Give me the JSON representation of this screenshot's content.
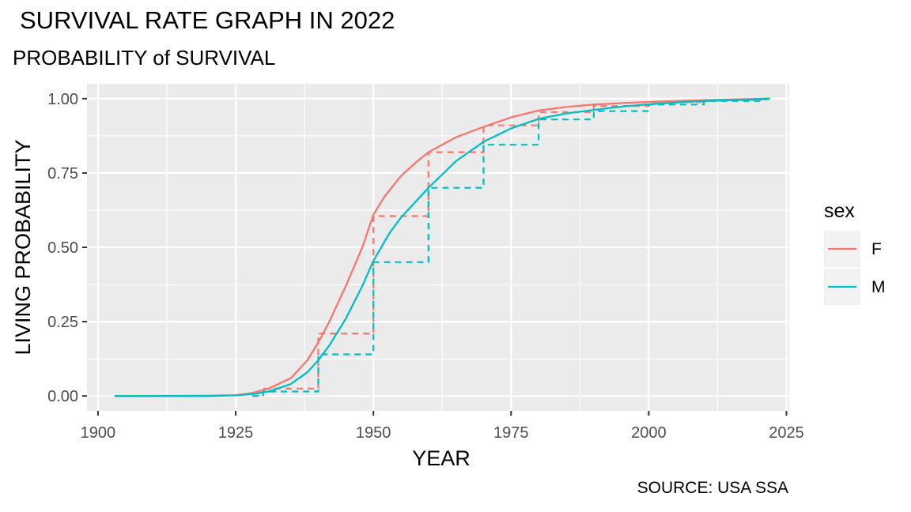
{
  "title": "SURVIVAL RATE GRAPH IN 2022",
  "subtitle": "PROBABILITY of SURVIVAL",
  "caption": "SOURCE: USA SSA",
  "chart_data": {
    "type": "line",
    "xlabel": "YEAR",
    "ylabel": "LIVING PROBABILITY",
    "xlim": [
      1898,
      2025.5
    ],
    "ylim": [
      -0.05,
      1.05
    ],
    "xticks": [
      1900,
      1925,
      1950,
      1975,
      2000,
      2025
    ],
    "yticks": [
      0.0,
      0.25,
      0.5,
      0.75,
      1.0
    ],
    "ytick_labels": [
      "0.00",
      "0.25",
      "0.50",
      "0.75",
      "1.00"
    ],
    "grid": true,
    "legend": {
      "title": "sex",
      "position": "right"
    },
    "series": [
      {
        "name": "F",
        "color": "#F8766D",
        "smooth": [
          [
            1903,
            0.0
          ],
          [
            1910,
            0.0
          ],
          [
            1920,
            0.001
          ],
          [
            1925,
            0.003
          ],
          [
            1928,
            0.01
          ],
          [
            1931,
            0.025
          ],
          [
            1935,
            0.06
          ],
          [
            1938,
            0.12
          ],
          [
            1940,
            0.18
          ],
          [
            1942,
            0.25
          ],
          [
            1945,
            0.37
          ],
          [
            1948,
            0.5
          ],
          [
            1950,
            0.61
          ],
          [
            1952,
            0.67
          ],
          [
            1955,
            0.74
          ],
          [
            1958,
            0.79
          ],
          [
            1960,
            0.82
          ],
          [
            1965,
            0.87
          ],
          [
            1970,
            0.905
          ],
          [
            1975,
            0.937
          ],
          [
            1980,
            0.96
          ],
          [
            1985,
            0.972
          ],
          [
            1990,
            0.98
          ],
          [
            1995,
            0.985
          ],
          [
            2000,
            0.989
          ],
          [
            2005,
            0.992
          ],
          [
            2010,
            0.995
          ],
          [
            2015,
            0.997
          ],
          [
            2022,
            1.0
          ]
        ],
        "step": [
          [
            1930,
            0.025
          ],
          [
            1940,
            0.025
          ],
          [
            1940,
            0.21
          ],
          [
            1950,
            0.21
          ],
          [
            1950,
            0.605
          ],
          [
            1960,
            0.605
          ],
          [
            1960,
            0.82
          ],
          [
            1970,
            0.82
          ],
          [
            1970,
            0.91
          ],
          [
            1980,
            0.91
          ],
          [
            1980,
            0.955
          ],
          [
            1990,
            0.955
          ],
          [
            1990,
            0.975
          ],
          [
            2000,
            0.975
          ],
          [
            2000,
            0.988
          ],
          [
            2010,
            0.988
          ],
          [
            2010,
            0.995
          ],
          [
            2020,
            0.995
          ],
          [
            2022,
            1.0
          ]
        ]
      },
      {
        "name": "M",
        "color": "#00BFC4",
        "smooth": [
          [
            1903,
            0.0
          ],
          [
            1910,
            0.0
          ],
          [
            1920,
            0.0
          ],
          [
            1925,
            0.002
          ],
          [
            1928,
            0.006
          ],
          [
            1931,
            0.015
          ],
          [
            1935,
            0.04
          ],
          [
            1938,
            0.08
          ],
          [
            1940,
            0.12
          ],
          [
            1942,
            0.17
          ],
          [
            1945,
            0.26
          ],
          [
            1948,
            0.37
          ],
          [
            1950,
            0.455
          ],
          [
            1953,
            0.55
          ],
          [
            1955,
            0.6
          ],
          [
            1958,
            0.66
          ],
          [
            1960,
            0.7
          ],
          [
            1965,
            0.79
          ],
          [
            1970,
            0.855
          ],
          [
            1975,
            0.9
          ],
          [
            1980,
            0.932
          ],
          [
            1985,
            0.95
          ],
          [
            1990,
            0.962
          ],
          [
            1995,
            0.973
          ],
          [
            2000,
            0.981
          ],
          [
            2005,
            0.987
          ],
          [
            2010,
            0.992
          ],
          [
            2015,
            0.995
          ],
          [
            2022,
            1.0
          ]
        ],
        "step": [
          [
            1928,
            0.0
          ],
          [
            1930,
            0.0
          ],
          [
            1930,
            0.015
          ],
          [
            1940,
            0.015
          ],
          [
            1940,
            0.14
          ],
          [
            1950,
            0.14
          ],
          [
            1950,
            0.45
          ],
          [
            1960,
            0.45
          ],
          [
            1960,
            0.7
          ],
          [
            1970,
            0.7
          ],
          [
            1970,
            0.845
          ],
          [
            1980,
            0.845
          ],
          [
            1980,
            0.93
          ],
          [
            1990,
            0.93
          ],
          [
            1990,
            0.958
          ],
          [
            2000,
            0.958
          ],
          [
            2000,
            0.98
          ],
          [
            2010,
            0.98
          ],
          [
            2010,
            0.992
          ],
          [
            2020,
            0.992
          ],
          [
            2022,
            1.0
          ]
        ]
      }
    ]
  }
}
